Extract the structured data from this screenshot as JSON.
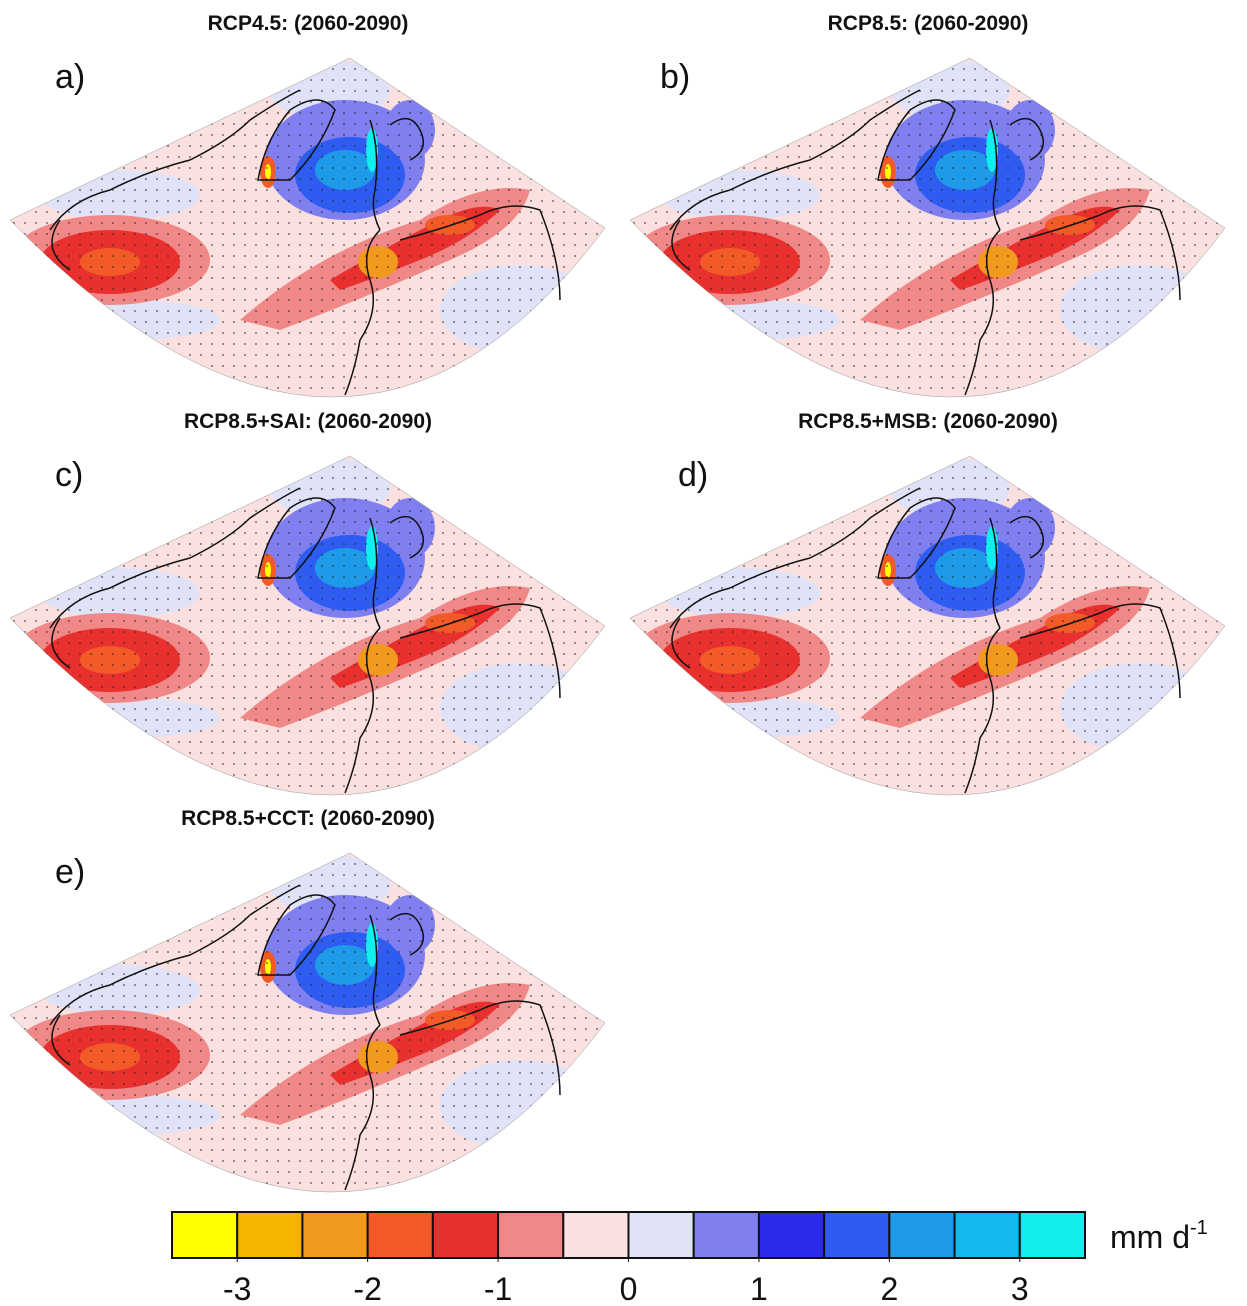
{
  "panels": [
    {
      "label": "a)",
      "title": "RCP4.5: (2060-2090)"
    },
    {
      "label": "b)",
      "title": "RCP8.5: (2060-2090)"
    },
    {
      "label": "c)",
      "title": "RCP8.5+SAI: (2060-2090)"
    },
    {
      "label": "d)",
      "title": "RCP8.5+MSB: (2060-2090)"
    },
    {
      "label": "e)",
      "title": "RCP8.5+CCT: (2060-2090)"
    }
  ],
  "colorbar": {
    "lim": [
      -3.5,
      3.5
    ],
    "ticks": [
      -3,
      -2,
      -1,
      0,
      1,
      2,
      3
    ],
    "colors": [
      "#ffff00",
      "#f5b400",
      "#f29a1e",
      "#f25a28",
      "#e8302e",
      "#f08888",
      "#fbe0e0",
      "#e0e2f8",
      "#7f7ff0",
      "#2a2ae8",
      "#2e5cf0",
      "#1e9ae8",
      "#12b8f0",
      "#10eeee"
    ],
    "unit": "mm d",
    "unit_exponent": "-1"
  }
}
